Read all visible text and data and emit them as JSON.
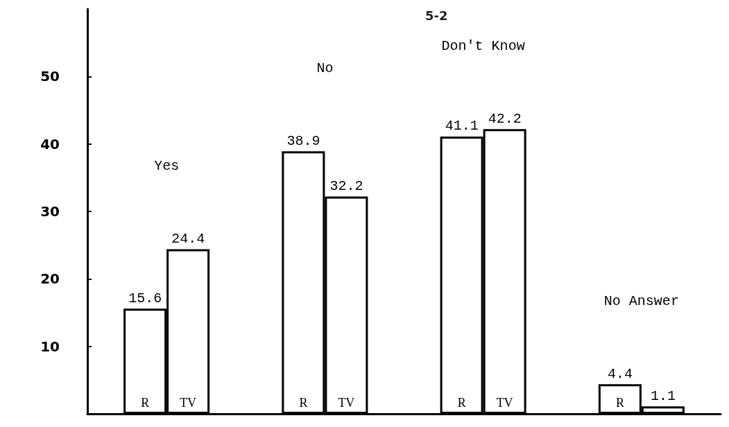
{
  "chart_data": {
    "type": "bar",
    "title": "5-2",
    "categories": [
      "Yes",
      "No",
      "Don't Know",
      "No Answer"
    ],
    "series": [
      {
        "name": "R",
        "color": "#ffffff",
        "values": [
          15.6,
          38.9,
          41.1,
          4.4
        ]
      },
      {
        "name": "TV",
        "color": "#ffffff",
        "values": [
          24.4,
          32.2,
          42.2,
          1.1
        ]
      }
    ],
    "ylim": [
      0,
      60
    ],
    "yticks": [
      10,
      20,
      30,
      40,
      50
    ],
    "data_labels": true,
    "grid": false,
    "legend": false
  }
}
